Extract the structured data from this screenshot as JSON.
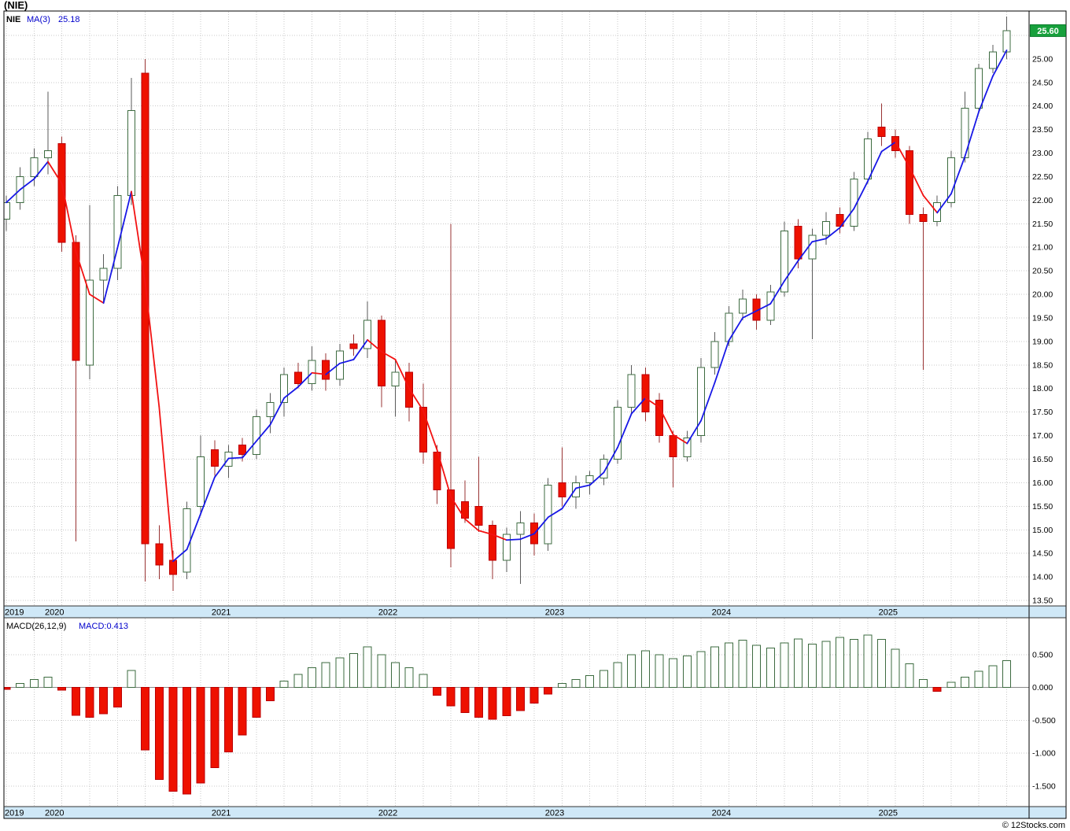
{
  "title": {
    "text": "(NIE)"
  },
  "header": {
    "symbol": "NIE",
    "ma_label": "MA(3)",
    "ma_value": "25.18"
  },
  "macd_header": {
    "label": "MACD(26,12,9)",
    "value": "MACD:0.413"
  },
  "price_box": {
    "value": "25.60"
  },
  "footer": {
    "credit": "© 12Stocks.com"
  },
  "axes": {
    "price_labels": [
      "25.00",
      "24.50",
      "24.00",
      "23.50",
      "23.00",
      "22.50",
      "22.00",
      "21.50",
      "21.00",
      "20.50",
      "20.00",
      "19.50",
      "19.00",
      "18.50",
      "18.00",
      "17.50",
      "17.00",
      "16.50",
      "16.00",
      "15.50",
      "15.00",
      "14.50",
      "14.00",
      "13.50"
    ],
    "macd_labels": [
      "0.500",
      "0.000",
      "-0.500",
      "-1.000",
      "-1.500"
    ],
    "years": [
      {
        "label": "2019",
        "month_index": 0
      },
      {
        "label": "2020",
        "month_index": 3
      },
      {
        "label": "2021",
        "month_index": 15
      },
      {
        "label": "2022",
        "month_index": 27
      },
      {
        "label": "2023",
        "month_index": 39
      },
      {
        "label": "2024",
        "month_index": 51
      },
      {
        "label": "2025",
        "month_index": 63
      }
    ]
  },
  "colors": {
    "up_stroke": "#3d6b40",
    "up_fill": "#ffffff",
    "down_fill": "#ee1100",
    "down_stroke": "#bb0000",
    "wick_up": "#5a5a5a",
    "wick_down": "#993333",
    "ma_up": "#1717e6",
    "ma_down": "#f21212",
    "grid": "#c9c9c9",
    "strip_bg": "#cfe8f7",
    "frame": "#000000",
    "price_box_bg": "#17a03c",
    "price_box_border": "#0a7a2a",
    "macd_pos_fill": "#fcfffc",
    "macd_pos_stroke": "#3d6b40",
    "macd_neg_fill": "#ee1100",
    "zero_line": "#888888"
  },
  "chart_data": {
    "type": "candlestick",
    "symbol": "NIE",
    "overlay": "MA(3)",
    "indicator": "MACD(26,12,9)",
    "interval": "monthly",
    "price_axis_range": [
      13.4,
      26.0
    ],
    "macd_axis_range": [
      -1.8,
      1.05
    ],
    "last_price": 25.6,
    "ma3_last": 25.18,
    "macd_last": 0.413,
    "months": [
      "2019-10",
      "2019-11",
      "2019-12",
      "2020-01",
      "2020-02",
      "2020-03",
      "2020-04",
      "2020-05",
      "2020-06",
      "2020-07",
      "2020-08",
      "2020-09",
      "2020-10",
      "2020-11",
      "2020-12",
      "2021-01",
      "2021-02",
      "2021-03",
      "2021-04",
      "2021-05",
      "2021-06",
      "2021-07",
      "2021-08",
      "2021-09",
      "2021-10",
      "2021-11",
      "2021-12",
      "2022-01",
      "2022-02",
      "2022-03",
      "2022-04",
      "2022-05",
      "2022-06",
      "2022-07",
      "2022-08",
      "2022-09",
      "2022-10",
      "2022-11",
      "2022-12",
      "2023-01",
      "2023-02",
      "2023-03",
      "2023-04",
      "2023-05",
      "2023-06",
      "2023-07",
      "2023-08",
      "2023-09",
      "2023-10",
      "2023-11",
      "2023-12",
      "2024-01",
      "2024-02",
      "2024-03",
      "2024-04",
      "2024-05",
      "2024-06",
      "2024-07",
      "2024-08",
      "2024-09",
      "2024-10",
      "2024-11",
      "2024-12",
      "2025-01",
      "2025-02",
      "2025-03",
      "2025-04",
      "2025-05",
      "2025-06",
      "2025-07",
      "2025-08",
      "2025-09",
      "2025-10"
    ],
    "ohlc": [
      [
        21.6,
        22.1,
        21.35,
        21.95
      ],
      [
        21.95,
        22.7,
        21.8,
        22.5
      ],
      [
        22.5,
        23.1,
        22.3,
        22.9
      ],
      [
        22.9,
        24.3,
        22.55,
        23.05
      ],
      [
        23.2,
        23.35,
        20.9,
        21.1
      ],
      [
        21.1,
        21.25,
        14.75,
        18.6
      ],
      [
        18.5,
        21.9,
        18.2,
        20.3
      ],
      [
        20.3,
        20.85,
        19.8,
        20.55
      ],
      [
        20.55,
        22.3,
        20.3,
        22.1
      ],
      [
        22.1,
        24.6,
        21.9,
        23.9
      ],
      [
        24.7,
        25.0,
        13.9,
        14.7
      ],
      [
        14.7,
        15.1,
        13.95,
        14.25
      ],
      [
        14.35,
        14.55,
        13.7,
        14.05
      ],
      [
        14.1,
        15.6,
        13.95,
        15.45
      ],
      [
        15.5,
        17.0,
        15.3,
        16.55
      ],
      [
        16.7,
        16.9,
        16.15,
        16.35
      ],
      [
        16.35,
        16.8,
        16.1,
        16.65
      ],
      [
        16.8,
        16.95,
        16.45,
        16.6
      ],
      [
        16.6,
        17.55,
        16.5,
        17.4
      ],
      [
        17.4,
        17.9,
        17.05,
        17.7
      ],
      [
        17.7,
        18.45,
        17.4,
        18.3
      ],
      [
        18.35,
        18.55,
        18.0,
        18.1
      ],
      [
        18.1,
        18.9,
        17.95,
        18.6
      ],
      [
        18.6,
        18.75,
        17.95,
        18.2
      ],
      [
        18.2,
        18.95,
        18.05,
        18.8
      ],
      [
        18.95,
        19.15,
        18.7,
        18.85
      ],
      [
        18.85,
        19.85,
        18.65,
        19.45
      ],
      [
        19.45,
        19.55,
        17.6,
        18.05
      ],
      [
        18.05,
        18.6,
        17.4,
        18.35
      ],
      [
        18.35,
        18.55,
        17.3,
        17.6
      ],
      [
        17.6,
        18.1,
        16.4,
        16.65
      ],
      [
        16.65,
        16.8,
        15.55,
        15.85
      ],
      [
        15.85,
        21.5,
        14.2,
        14.6
      ],
      [
        15.6,
        16.05,
        15.15,
        15.25
      ],
      [
        15.5,
        16.55,
        14.95,
        15.1
      ],
      [
        15.1,
        15.2,
        13.95,
        14.35
      ],
      [
        14.35,
        15.05,
        14.1,
        14.9
      ],
      [
        14.9,
        15.4,
        13.85,
        15.15
      ],
      [
        15.15,
        15.35,
        14.45,
        14.7
      ],
      [
        14.7,
        16.1,
        14.55,
        15.95
      ],
      [
        16.0,
        16.75,
        15.5,
        15.7
      ],
      [
        15.7,
        16.15,
        15.45,
        16.0
      ],
      [
        16.0,
        16.25,
        15.75,
        16.15
      ],
      [
        16.1,
        16.6,
        15.95,
        16.5
      ],
      [
        16.5,
        17.75,
        16.4,
        17.6
      ],
      [
        17.6,
        18.5,
        17.45,
        18.3
      ],
      [
        18.3,
        18.45,
        17.3,
        17.5
      ],
      [
        17.75,
        17.9,
        16.85,
        17.0
      ],
      [
        17.0,
        17.1,
        15.9,
        16.55
      ],
      [
        16.55,
        17.1,
        16.45,
        16.95
      ],
      [
        17.0,
        18.65,
        16.85,
        18.45
      ],
      [
        18.45,
        19.2,
        18.3,
        19.0
      ],
      [
        19.0,
        19.75,
        18.9,
        19.6
      ],
      [
        19.6,
        20.1,
        19.45,
        19.9
      ],
      [
        19.9,
        20.0,
        19.25,
        19.45
      ],
      [
        19.45,
        20.2,
        19.35,
        20.05
      ],
      [
        20.05,
        21.55,
        19.95,
        21.35
      ],
      [
        21.45,
        21.6,
        20.55,
        20.75
      ],
      [
        20.75,
        21.4,
        19.05,
        21.25
      ],
      [
        21.25,
        21.75,
        21.05,
        21.55
      ],
      [
        21.7,
        21.85,
        21.3,
        21.45
      ],
      [
        21.45,
        22.6,
        21.35,
        22.45
      ],
      [
        22.45,
        23.45,
        22.35,
        23.3
      ],
      [
        23.55,
        24.05,
        23.15,
        23.35
      ],
      [
        23.35,
        23.5,
        22.9,
        23.05
      ],
      [
        23.05,
        23.15,
        21.5,
        21.7
      ],
      [
        21.7,
        21.85,
        18.4,
        21.55
      ],
      [
        21.55,
        22.1,
        21.45,
        21.95
      ],
      [
        21.95,
        23.05,
        21.85,
        22.9
      ],
      [
        22.9,
        24.3,
        22.8,
        23.95
      ],
      [
        23.95,
        24.9,
        23.85,
        24.8
      ],
      [
        24.8,
        25.3,
        24.7,
        25.15
      ],
      [
        25.15,
        25.9,
        25.0,
        25.6
      ]
    ],
    "macd_histogram": [
      -0.03,
      0.06,
      0.12,
      0.16,
      -0.04,
      -0.42,
      -0.45,
      -0.4,
      -0.3,
      0.26,
      -0.95,
      -1.4,
      -1.58,
      -1.62,
      -1.45,
      -1.22,
      -0.98,
      -0.72,
      -0.45,
      -0.2,
      0.1,
      0.2,
      0.3,
      0.38,
      0.45,
      0.52,
      0.62,
      0.5,
      0.38,
      0.3,
      0.2,
      -0.12,
      -0.28,
      -0.38,
      -0.45,
      -0.48,
      -0.43,
      -0.35,
      -0.24,
      -0.1,
      0.06,
      0.12,
      0.18,
      0.26,
      0.38,
      0.5,
      0.56,
      0.5,
      0.44,
      0.48,
      0.55,
      0.62,
      0.68,
      0.72,
      0.64,
      0.6,
      0.68,
      0.74,
      0.66,
      0.7,
      0.76,
      0.73,
      0.8,
      0.73,
      0.58,
      0.36,
      0.12,
      -0.06,
      0.08,
      0.16,
      0.25,
      0.33,
      0.41
    ]
  }
}
